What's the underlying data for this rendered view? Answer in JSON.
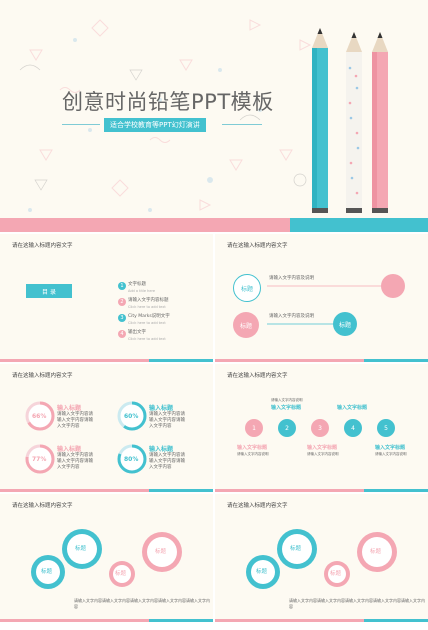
{
  "hero": {
    "title": "创意时尚铅笔PPT模板",
    "subtitle": "适合学校教育等PPT幻灯演讲"
  },
  "slide_header": "请在这输入标题内容文字",
  "agenda": {
    "label": "目 录",
    "items": [
      {
        "num": "1",
        "title": "文字标题",
        "desc": "Add a title here"
      },
      {
        "num": "2",
        "title": "请输入文字内容标题",
        "desc": "Click here to add text"
      },
      {
        "num": "3",
        "title": "City Marks说明文字",
        "desc": "Click here to add text"
      },
      {
        "num": "4",
        "title": "输出文字",
        "desc": "Click here to add text"
      }
    ]
  },
  "flow": {
    "node_title": "标题",
    "text": "请输入文字内容及说明"
  },
  "percent": {
    "items": [
      {
        "value": "66%",
        "title": "输入标题",
        "color": "#f4a7b3"
      },
      {
        "value": "60%",
        "title": "输入标题",
        "color": "#43c1cf"
      },
      {
        "value": "77%",
        "title": "输入标题",
        "color": "#f4a7b3"
      },
      {
        "value": "80%",
        "title": "输入标题",
        "color": "#43c1cf"
      }
    ],
    "desc": "请输入文字内容请输入文字内容请输入文字内容"
  },
  "steps": {
    "nums": [
      "1",
      "2",
      "3",
      "4",
      "5"
    ],
    "label": "输入文字标题",
    "text": "请输入文字内容说明"
  },
  "gears": {
    "label": "标题",
    "caption": "请输入文字内容请输入文字内容请输入文字内容请输入文字内容请输入文字内容"
  },
  "colors": {
    "pink": "#f4a7b3",
    "blue": "#43c1cf",
    "cream": "#fdfaf2"
  }
}
